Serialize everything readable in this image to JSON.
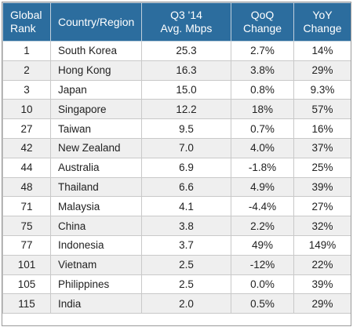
{
  "chart_data": {
    "type": "table",
    "columns": [
      "Global Rank",
      "Country/Region",
      "Q3 '14 Avg. Mbps",
      "QoQ Change",
      "YoY Change"
    ],
    "header_lines": [
      [
        "Global",
        "Rank"
      ],
      [
        "Country/Region"
      ],
      [
        "Q3 '14",
        "Avg. Mbps"
      ],
      [
        "QoQ",
        "Change"
      ],
      [
        "YoY",
        "Change"
      ]
    ],
    "rows": [
      [
        "1",
        "South Korea",
        "25.3",
        "2.7%",
        "14%"
      ],
      [
        "2",
        "Hong Kong",
        "16.3",
        "3.8%",
        "29%"
      ],
      [
        "3",
        "Japan",
        "15.0",
        "0.8%",
        "9.3%"
      ],
      [
        "10",
        "Singapore",
        "12.2",
        "18%",
        "57%"
      ],
      [
        "27",
        "Taiwan",
        "9.5",
        "0.7%",
        "16%"
      ],
      [
        "42",
        "New Zealand",
        "7.0",
        "4.0%",
        "37%"
      ],
      [
        "44",
        "Australia",
        "6.9",
        "-1.8%",
        "25%"
      ],
      [
        "48",
        "Thailand",
        "6.6",
        "4.9%",
        "39%"
      ],
      [
        "71",
        "Malaysia",
        "4.1",
        "-4.4%",
        "27%"
      ],
      [
        "75",
        "China",
        "3.8",
        "2.2%",
        "32%"
      ],
      [
        "77",
        "Indonesia",
        "3.7",
        "49%",
        "149%"
      ],
      [
        "101",
        "Vietnam",
        "2.5",
        "-12%",
        "22%"
      ],
      [
        "105",
        "Philippines",
        "2.5",
        "0.0%",
        "39%"
      ],
      [
        "115",
        "India",
        "2.0",
        "0.5%",
        "29%"
      ]
    ]
  },
  "colors": {
    "header_bg": "#2c6d9e",
    "header_text": "#ffffff",
    "stripe": "#efefef"
  }
}
